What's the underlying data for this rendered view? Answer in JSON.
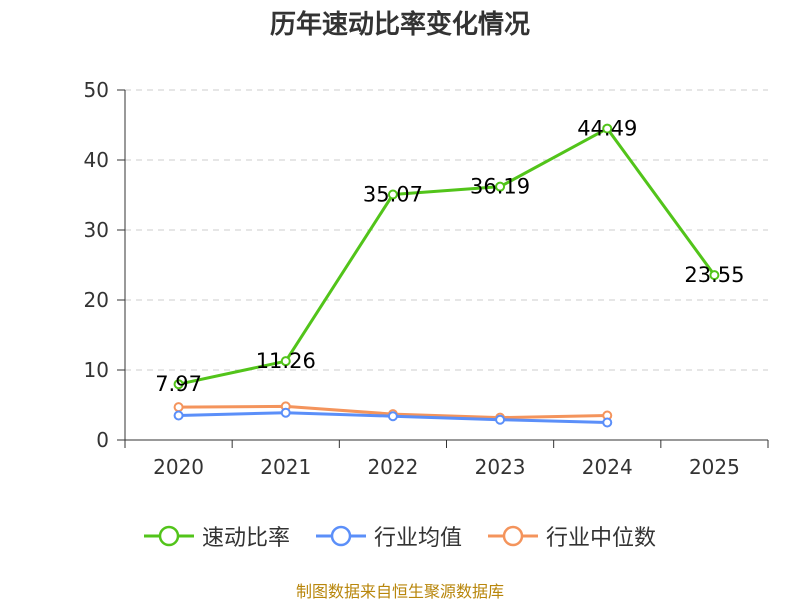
{
  "chart_data": {
    "type": "line",
    "title": "历年速动比率变化情况",
    "categories": [
      "2020",
      "2021",
      "2022",
      "2023",
      "2024",
      "2025"
    ],
    "ylim": [
      0,
      50
    ],
    "yticks": [
      "0",
      "10",
      "20",
      "30",
      "40",
      "50"
    ],
    "grid": true,
    "legend_position": "bottom",
    "series": [
      {
        "name": "速动比率",
        "color": "#52c41a",
        "values": [
          7.97,
          11.26,
          35.07,
          36.19,
          44.49,
          23.55
        ],
        "labels": [
          "7.97",
          "11.26",
          "35.07",
          "36.19",
          "44.49",
          "23.55"
        ]
      },
      {
        "name": "行业均值",
        "color": "#5b8ff9",
        "values": [
          3.5,
          3.9,
          3.4,
          2.9,
          2.5,
          null
        ]
      },
      {
        "name": "行业中位数",
        "color": "#f4945c",
        "values": [
          4.7,
          4.8,
          3.7,
          3.2,
          3.5,
          null
        ]
      }
    ]
  },
  "source": "制图数据来自恒生聚源数据库"
}
